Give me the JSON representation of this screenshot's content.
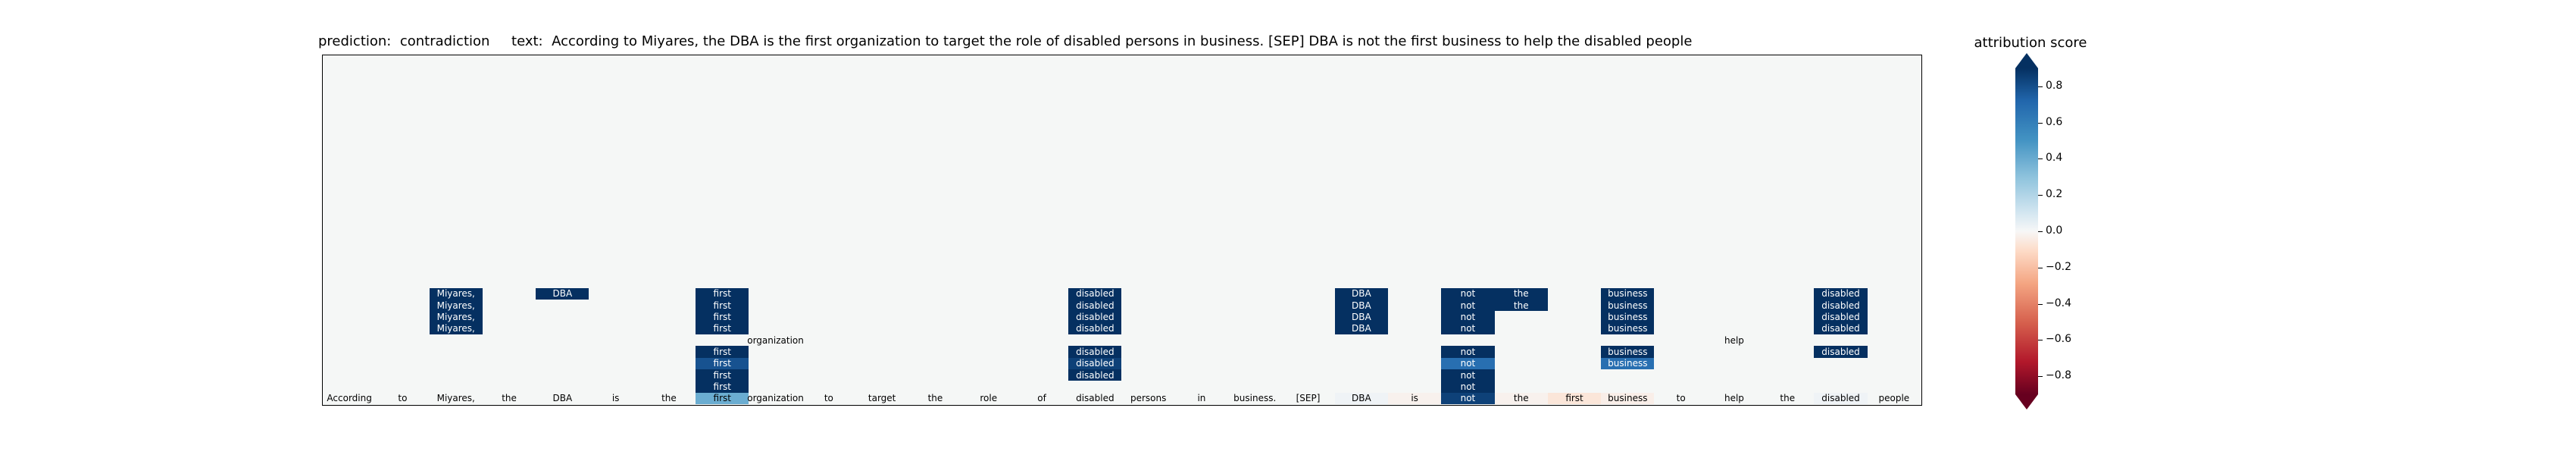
{
  "header": {
    "title": "prediction:  contradiction     text:  According to Miyares, the DBA is the first organization to target the role of disabled persons in business. [SEP] DBA is not the first business to help the disabled people"
  },
  "colorbar": {
    "title": "attribution score",
    "ticks": [
      "0.8",
      "0.6",
      "0.4",
      "0.2",
      "0.0",
      "−0.2",
      "−0.4",
      "−0.6",
      "−0.8"
    ],
    "colormap": "RdBu",
    "range": [
      -0.8,
      0.8
    ]
  },
  "chart_data": {
    "type": "heatmap",
    "title": "prediction:  contradiction     text:  According to Miyares, the DBA is the first organization to target the role of disabled persons in business. [SEP] DBA is not the first business to help the disabled people",
    "prediction": "contradiction",
    "colorbar_label": "attribution score",
    "clim": [
      -0.8,
      0.8
    ],
    "tokens": [
      "According",
      "to",
      "Miyares,",
      "the",
      "DBA",
      "is",
      "the",
      "first",
      "organization",
      "to",
      "target",
      "the",
      "role",
      "of",
      "disabled",
      "persons",
      "in",
      "business.",
      "[SEP]",
      "DBA",
      "is",
      "not",
      "the",
      "first",
      "business",
      "to",
      "help",
      "the",
      "disabled",
      "people"
    ],
    "n_rows": 30,
    "cells": [
      {
        "row": 0,
        "col": 0,
        "value": 0.0
      },
      {
        "row": 0,
        "col": 1,
        "value": 0.0
      },
      {
        "row": 0,
        "col": 2,
        "value": 0.0
      },
      {
        "row": 0,
        "col": 3,
        "value": 0.0
      },
      {
        "row": 0,
        "col": 4,
        "value": 0.0
      },
      {
        "row": 0,
        "col": 5,
        "value": 0.0
      },
      {
        "row": 0,
        "col": 6,
        "value": 0.0
      },
      {
        "row": 0,
        "col": 7,
        "value": 0.35
      },
      {
        "row": 0,
        "col": 8,
        "value": 0.0
      },
      {
        "row": 0,
        "col": 9,
        "value": 0.0
      },
      {
        "row": 0,
        "col": 10,
        "value": 0.0
      },
      {
        "row": 0,
        "col": 11,
        "value": 0.0
      },
      {
        "row": 0,
        "col": 12,
        "value": 0.0
      },
      {
        "row": 0,
        "col": 13,
        "value": 0.0
      },
      {
        "row": 0,
        "col": 14,
        "value": 0.0
      },
      {
        "row": 0,
        "col": 15,
        "value": 0.0
      },
      {
        "row": 0,
        "col": 16,
        "value": 0.0
      },
      {
        "row": 0,
        "col": 17,
        "value": 0.0
      },
      {
        "row": 0,
        "col": 18,
        "value": 0.0
      },
      {
        "row": 0,
        "col": 19,
        "value": 0.02
      },
      {
        "row": 0,
        "col": 20,
        "value": -0.02
      },
      {
        "row": 0,
        "col": 21,
        "value": 0.75
      },
      {
        "row": 0,
        "col": 22,
        "value": -0.02
      },
      {
        "row": 0,
        "col": 23,
        "value": -0.06
      },
      {
        "row": 0,
        "col": 24,
        "value": -0.03
      },
      {
        "row": 0,
        "col": 25,
        "value": 0.0
      },
      {
        "row": 0,
        "col": 26,
        "value": 0.0
      },
      {
        "row": 0,
        "col": 27,
        "value": 0.0
      },
      {
        "row": 0,
        "col": 28,
        "value": 0.02
      },
      {
        "row": 0,
        "col": 29,
        "value": 0.0
      },
      {
        "row": 1,
        "col": 7,
        "value": 0.8
      },
      {
        "row": 1,
        "col": 21,
        "value": 0.8
      },
      {
        "row": 2,
        "col": 7,
        "value": 0.8
      },
      {
        "row": 2,
        "col": 14,
        "value": 0.8
      },
      {
        "row": 2,
        "col": 21,
        "value": 0.8
      },
      {
        "row": 3,
        "col": 7,
        "value": 0.7
      },
      {
        "row": 3,
        "col": 14,
        "value": 0.75
      },
      {
        "row": 3,
        "col": 21,
        "value": 0.6
      },
      {
        "row": 3,
        "col": 24,
        "value": 0.6
      },
      {
        "row": 4,
        "col": 7,
        "value": 0.8
      },
      {
        "row": 4,
        "col": 14,
        "value": 0.8
      },
      {
        "row": 4,
        "col": 21,
        "value": 0.8
      },
      {
        "row": 4,
        "col": 24,
        "value": 0.8
      },
      {
        "row": 4,
        "col": 28,
        "value": 0.8
      },
      {
        "row": 5,
        "col": 8,
        "value": 0.0
      },
      {
        "row": 5,
        "col": 26,
        "value": 0.0
      },
      {
        "row": 6,
        "col": 2,
        "value": 0.8
      },
      {
        "row": 6,
        "col": 7,
        "value": 0.8
      },
      {
        "row": 6,
        "col": 14,
        "value": 0.8
      },
      {
        "row": 6,
        "col": 19,
        "value": 0.8
      },
      {
        "row": 6,
        "col": 21,
        "value": 0.8
      },
      {
        "row": 6,
        "col": 24,
        "value": 0.8
      },
      {
        "row": 6,
        "col": 28,
        "value": 0.8
      },
      {
        "row": 7,
        "col": 2,
        "value": 0.8
      },
      {
        "row": 7,
        "col": 7,
        "value": 0.8
      },
      {
        "row": 7,
        "col": 14,
        "value": 0.8
      },
      {
        "row": 7,
        "col": 19,
        "value": 0.8
      },
      {
        "row": 7,
        "col": 21,
        "value": 0.8
      },
      {
        "row": 7,
        "col": 24,
        "value": 0.8
      },
      {
        "row": 7,
        "col": 28,
        "value": 0.8
      },
      {
        "row": 8,
        "col": 2,
        "value": 0.8
      },
      {
        "row": 8,
        "col": 7,
        "value": 0.8
      },
      {
        "row": 8,
        "col": 14,
        "value": 0.8
      },
      {
        "row": 8,
        "col": 19,
        "value": 0.8
      },
      {
        "row": 8,
        "col": 21,
        "value": 0.8
      },
      {
        "row": 8,
        "col": 22,
        "value": 0.8
      },
      {
        "row": 8,
        "col": 24,
        "value": 0.8
      },
      {
        "row": 8,
        "col": 28,
        "value": 0.8
      },
      {
        "row": 9,
        "col": 2,
        "value": 0.8
      },
      {
        "row": 9,
        "col": 4,
        "value": 0.8
      },
      {
        "row": 9,
        "col": 7,
        "value": 0.8
      },
      {
        "row": 9,
        "col": 14,
        "value": 0.8
      },
      {
        "row": 9,
        "col": 19,
        "value": 0.8
      },
      {
        "row": 9,
        "col": 21,
        "value": 0.8
      },
      {
        "row": 9,
        "col": 22,
        "value": 0.8
      },
      {
        "row": 9,
        "col": 24,
        "value": 0.8
      },
      {
        "row": 9,
        "col": 28,
        "value": 0.8
      }
    ]
  }
}
